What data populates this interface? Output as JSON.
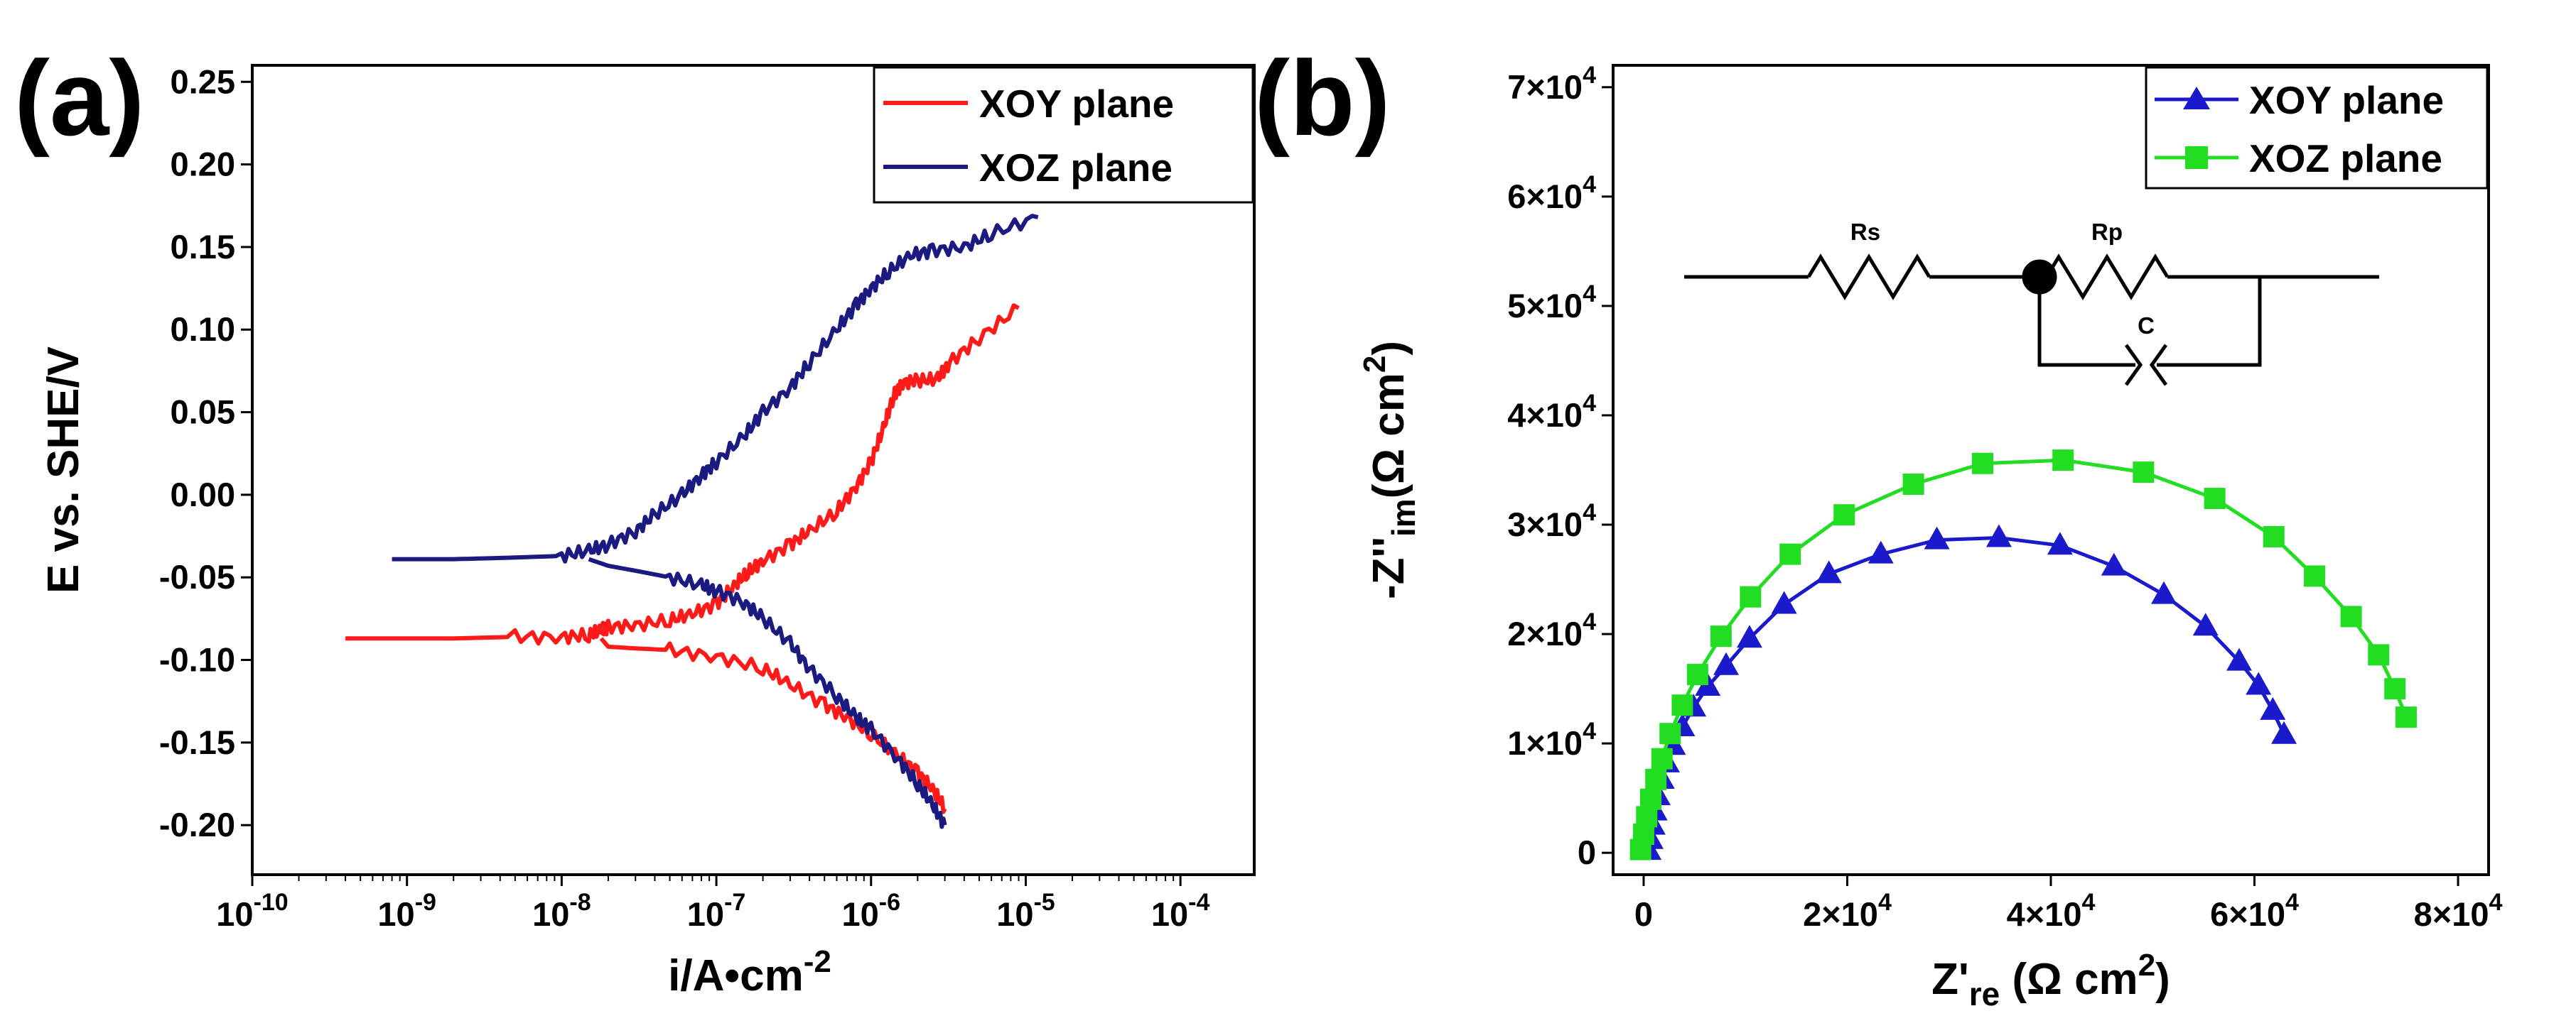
{
  "chart_data": [
    {
      "panel": "(a)",
      "type": "line",
      "xlabel_main": "i/A•cm",
      "xlabel_sup": "-2",
      "ylabel": "E vs. SHE/V",
      "xscale": "log",
      "xlim": [
        1e-10,
        0.0003
      ],
      "ylim": [
        -0.23,
        0.26
      ],
      "xticks": [
        {
          "value": 1e-10,
          "base": "10",
          "exp": "-10"
        },
        {
          "value": 1e-09,
          "base": "10",
          "exp": "-9"
        },
        {
          "value": 1e-08,
          "base": "10",
          "exp": "-8"
        },
        {
          "value": 1e-07,
          "base": "10",
          "exp": "-7"
        },
        {
          "value": 1e-06,
          "base": "10",
          "exp": "-6"
        },
        {
          "value": 1e-05,
          "base": "10",
          "exp": "-5"
        },
        {
          "value": 0.0001,
          "base": "10",
          "exp": "-4"
        }
      ],
      "yticks": [
        {
          "value": 0.25,
          "label": "0.25"
        },
        {
          "value": 0.2,
          "label": "0.20"
        },
        {
          "value": 0.15,
          "label": "0.15"
        },
        {
          "value": 0.1,
          "label": "0.10"
        },
        {
          "value": 0.05,
          "label": "0.05"
        },
        {
          "value": 0.0,
          "label": "0.00"
        },
        {
          "value": -0.05,
          "label": "-0.05"
        },
        {
          "value": -0.1,
          "label": "-0.10"
        },
        {
          "value": -0.15,
          "label": "-0.15"
        },
        {
          "value": -0.2,
          "label": "-0.20"
        }
      ],
      "legend_position": "top-right",
      "series": [
        {
          "name": "XOY plane",
          "color": "#ff1a1a",
          "noisy": true,
          "points": [
            [
              4e-10,
              -0.087
            ],
            [
              8e-10,
              -0.087
            ],
            [
              2e-09,
              -0.087
            ],
            [
              5e-09,
              -0.086
            ],
            [
              1e-08,
              -0.086
            ],
            [
              1.5e-08,
              -0.085
            ],
            [
              1.8e-08,
              -0.082
            ],
            [
              2e-08,
              -0.08
            ],
            [
              3e-08,
              -0.079
            ],
            [
              5e-08,
              -0.076
            ],
            [
              7e-08,
              -0.072
            ],
            [
              1e-07,
              -0.066
            ],
            [
              1.3e-07,
              -0.055
            ],
            [
              1.6e-07,
              -0.047
            ],
            [
              2e-07,
              -0.04
            ],
            [
              3e-07,
              -0.03
            ],
            [
              4e-07,
              -0.022
            ],
            [
              6e-07,
              -0.01
            ],
            [
              8e-07,
              0.005
            ],
            [
              1e-06,
              0.02
            ],
            [
              1.2e-06,
              0.04
            ],
            [
              1.4e-06,
              0.06
            ],
            [
              1.6e-06,
              0.068
            ],
            [
              2e-06,
              0.069
            ],
            [
              2.7e-06,
              0.07
            ],
            [
              3.2e-06,
              0.08
            ],
            [
              5e-06,
              0.095
            ],
            [
              9e-06,
              0.113
            ]
          ],
          "cathodic": [
            [
              1.8e-08,
              -0.087
            ],
            [
              2e-08,
              -0.092
            ],
            [
              3e-08,
              -0.093
            ],
            [
              5e-08,
              -0.094
            ],
            [
              1e-07,
              -0.098
            ],
            [
              2e-07,
              -0.105
            ],
            [
              3e-07,
              -0.115
            ],
            [
              5e-07,
              -0.127
            ],
            [
              7e-07,
              -0.135
            ],
            [
              1e-06,
              -0.145
            ],
            [
              1.5e-06,
              -0.158
            ],
            [
              2e-06,
              -0.168
            ],
            [
              2.5e-06,
              -0.178
            ],
            [
              3e-06,
              -0.19
            ]
          ]
        },
        {
          "name": "XOZ plane",
          "color": "#1a1a80",
          "noisy": true,
          "points": [
            [
              8e-10,
              -0.039
            ],
            [
              2e-09,
              -0.039
            ],
            [
              5e-09,
              -0.038
            ],
            [
              1e-08,
              -0.037
            ],
            [
              1.5e-08,
              -0.034
            ],
            [
              2e-08,
              -0.03
            ],
            [
              3e-08,
              -0.022
            ],
            [
              4e-08,
              -0.012
            ],
            [
              6e-08,
              0.0
            ],
            [
              8e-08,
              0.012
            ],
            [
              1e-07,
              0.02
            ],
            [
              1.5e-07,
              0.035
            ],
            [
              2e-07,
              0.05
            ],
            [
              3e-07,
              0.065
            ],
            [
              4e-07,
              0.08
            ],
            [
              6e-07,
              0.1
            ],
            [
              8e-07,
              0.115
            ],
            [
              1e-06,
              0.125
            ],
            [
              1.3e-06,
              0.135
            ],
            [
              1.8e-06,
              0.145
            ],
            [
              2.5e-06,
              0.148
            ],
            [
              4e-06,
              0.15
            ],
            [
              6e-06,
              0.158
            ],
            [
              1.2e-05,
              0.168
            ]
          ],
          "cathodic": [
            [
              1.5e-08,
              -0.039
            ],
            [
              2e-08,
              -0.043
            ],
            [
              3e-08,
              -0.046
            ],
            [
              5e-08,
              -0.05
            ],
            [
              8e-08,
              -0.055
            ],
            [
              1e-07,
              -0.058
            ],
            [
              1.5e-07,
              -0.065
            ],
            [
              2e-07,
              -0.075
            ],
            [
              3e-07,
              -0.09
            ],
            [
              4e-07,
              -0.105
            ],
            [
              6e-07,
              -0.122
            ],
            [
              8e-07,
              -0.135
            ],
            [
              1e-06,
              -0.142
            ],
            [
              1.5e-06,
              -0.16
            ],
            [
              2e-06,
              -0.175
            ],
            [
              2.5e-06,
              -0.188
            ],
            [
              3e-06,
              -0.2
            ]
          ]
        }
      ]
    },
    {
      "panel": "(b)",
      "type": "line",
      "xlabel_main": "Z'",
      "xlabel_sub": "re",
      "xlabel_tail": " (Ω cm",
      "xlabel_sup": "2",
      "xlabel_end": ")",
      "ylabel_main": "-Z''",
      "ylabel_sub": "im",
      "ylabel_tail": "(Ω cm",
      "ylabel_sup": "2",
      "ylabel_end": ")",
      "xlim": [
        -3000,
        83000
      ],
      "ylim": [
        -2000,
        72000
      ],
      "xticks": [
        {
          "value": 0,
          "label": "0"
        },
        {
          "value": 20000,
          "label": "2×10",
          "exp": "4"
        },
        {
          "value": 40000,
          "label": "4×10",
          "exp": "4"
        },
        {
          "value": 60000,
          "label": "6×10",
          "exp": "4"
        },
        {
          "value": 80000,
          "label": "8×10",
          "exp": "4"
        }
      ],
      "yticks": [
        {
          "value": 0,
          "label": "0"
        },
        {
          "value": 10000,
          "label": "1×10",
          "exp": "4"
        },
        {
          "value": 20000,
          "label": "2×10",
          "exp": "4"
        },
        {
          "value": 30000,
          "label": "3×10",
          "exp": "4"
        },
        {
          "value": 40000,
          "label": "4×10",
          "exp": "4"
        },
        {
          "value": 50000,
          "label": "5×10",
          "exp": "4"
        },
        {
          "value": 60000,
          "label": "6×10",
          "exp": "4"
        },
        {
          "value": 70000,
          "label": "7×10",
          "exp": "4"
        }
      ],
      "legend_position": "top-right",
      "circuit_labels": {
        "rs": "Rs",
        "rp": "Rp",
        "c": "C"
      },
      "series": [
        {
          "name": "XOY plane",
          "color": "#1a1acc",
          "marker": "triangle",
          "x": [
            500,
            700,
            900,
            1100,
            1400,
            1800,
            2300,
            2900,
            3800,
            4900,
            6300,
            8100,
            10400,
            13800,
            18200,
            23300,
            28800,
            34900,
            40900,
            46200,
            51100,
            55200,
            58500,
            60400,
            61800,
            62900
          ],
          "y": [
            200,
            1200,
            2500,
            3800,
            5200,
            6700,
            8200,
            9800,
            11500,
            13300,
            15200,
            17100,
            19600,
            22700,
            25500,
            27300,
            28600,
            28800,
            28100,
            26200,
            23600,
            20700,
            17500,
            15300,
            13000,
            10800
          ]
        },
        {
          "name": "XOZ plane",
          "color": "#22dd22",
          "marker": "square",
          "x": [
            -300,
            0,
            300,
            700,
            1200,
            1800,
            2600,
            3800,
            5300,
            7600,
            10500,
            14400,
            19700,
            26500,
            33300,
            41200,
            49100,
            56100,
            61900,
            65900,
            69500,
            72200,
            73800,
            74900
          ],
          "y": [
            300,
            1700,
            3300,
            4900,
            6700,
            8600,
            10900,
            13500,
            16300,
            19800,
            23400,
            27300,
            30900,
            33700,
            35600,
            35900,
            34800,
            32400,
            28900,
            25300,
            21600,
            18100,
            15000,
            12400
          ]
        }
      ]
    }
  ]
}
